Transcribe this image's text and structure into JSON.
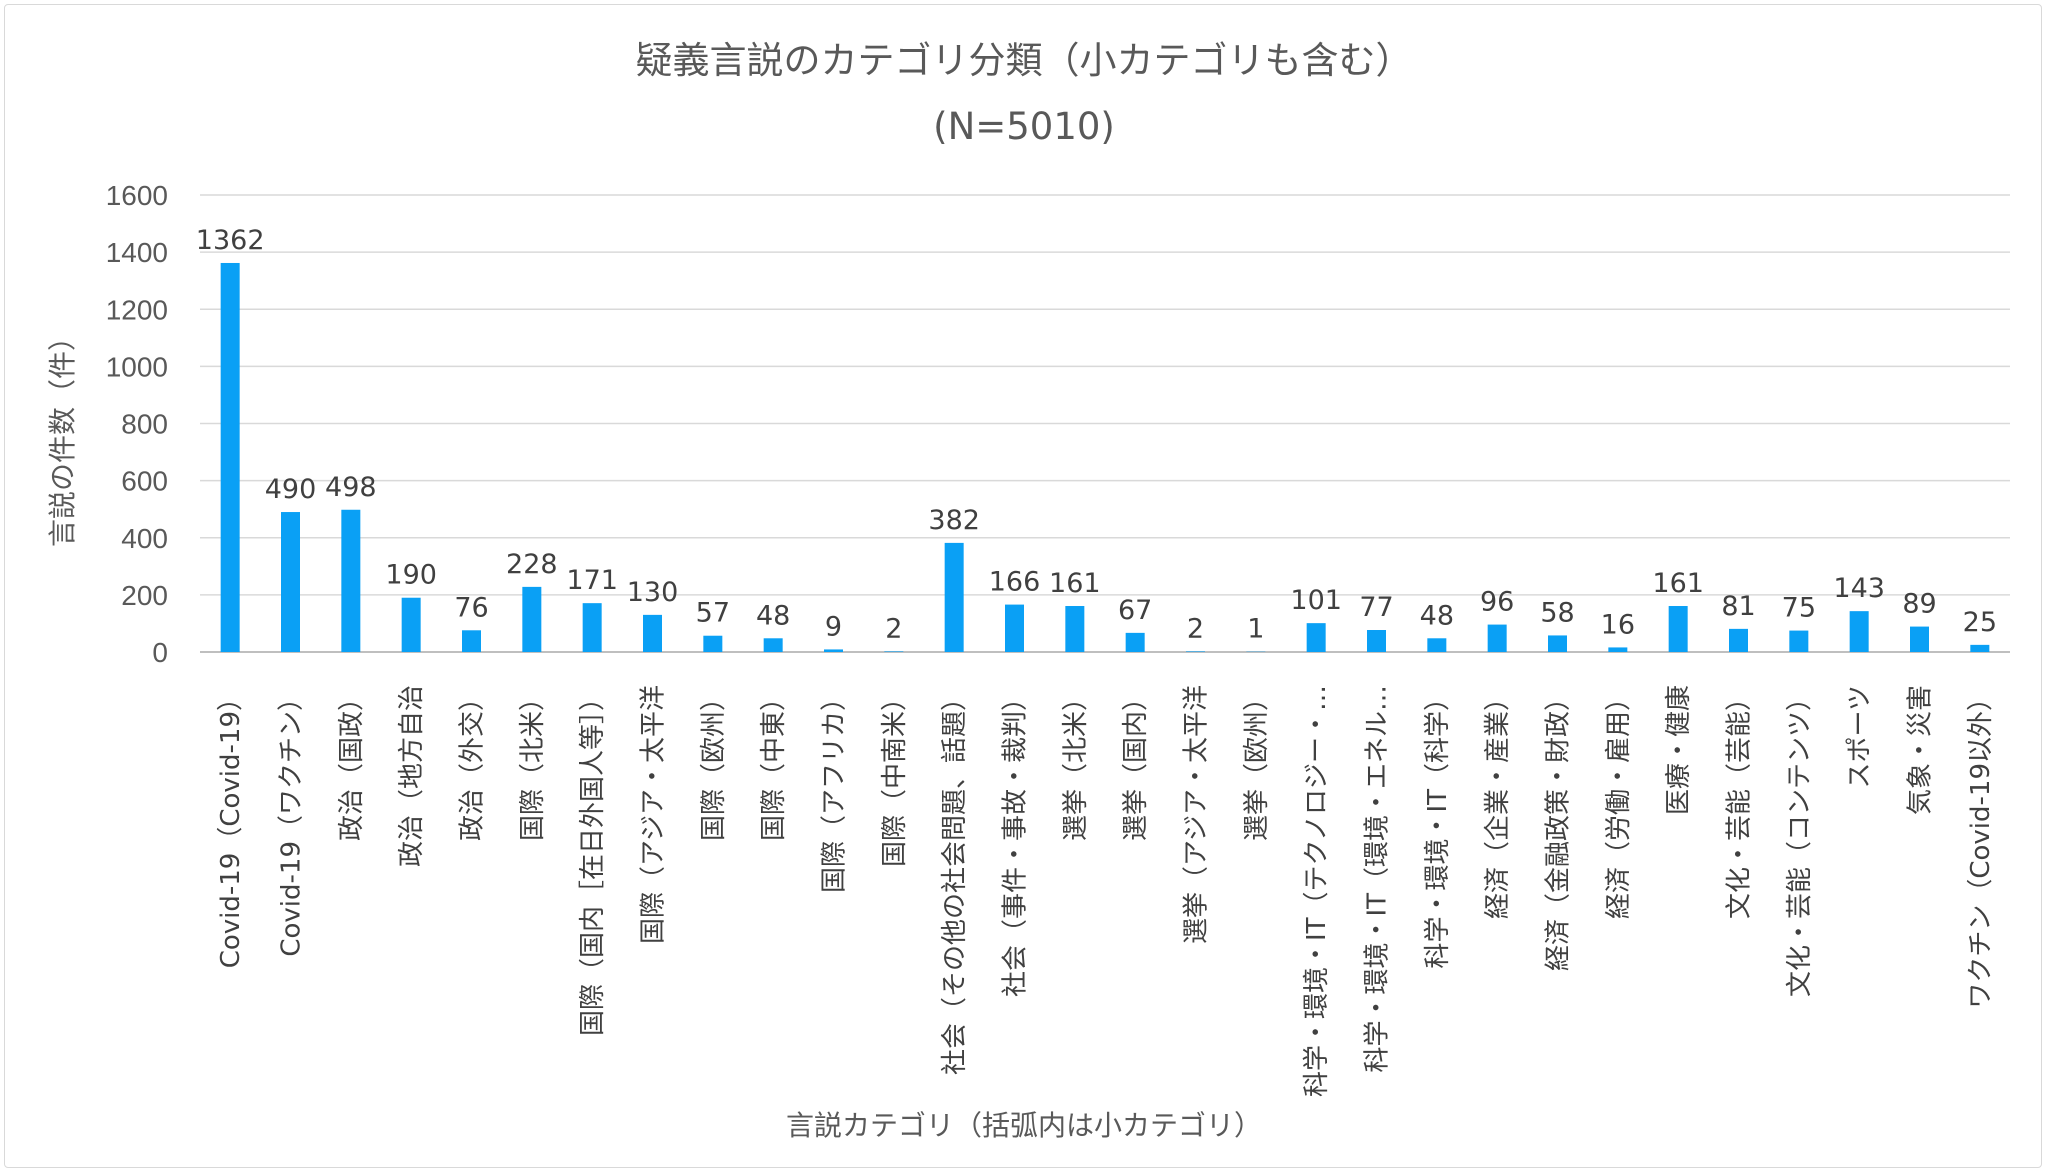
{
  "chart_data": {
    "type": "bar",
    "title": "疑義言説のカテゴリ分類（小カテゴリも含む）",
    "subtitle": "(N=5010)",
    "xlabel": "言説カテゴリ（括弧内は小カテゴリ）",
    "ylabel": "言説の件数（件）",
    "ylim": [
      0,
      1600
    ],
    "yticks": [
      0,
      200,
      400,
      600,
      800,
      1000,
      1200,
      1400,
      1600
    ],
    "grid": true,
    "bar_color": "#0aa0f5",
    "categories": [
      "Covid-19（Covid-19）",
      "Covid-19（ワクチン）",
      "政治（国政）",
      "政治（地方自治",
      "政治（外交）",
      "国際（北米）",
      "国際（国内［在日外国人等］）",
      "国際（アジア・太平洋",
      "国際（欧州）",
      "国際（中東）",
      "国際（アフリカ）",
      "国際（中南米）",
      "社会（その他の社会問題、話題）",
      "社会（事件・事故・裁判）",
      "選挙（北米）",
      "選挙（国内）",
      "選挙（アジア・太平洋",
      "選挙（欧州）",
      "科学・環境・IT（テクノロジー・…",
      "科学・環境・IT（環境・エネル…",
      "科学・環境・IT（科学）",
      "経済（企業・産業）",
      "経済（金融政策・財政）",
      "経済（労働・雇用）",
      "医療・健康",
      "文化・芸能（芸能）",
      "文化・芸能（コンテンツ）",
      "スポーツ",
      "気象・災害",
      "ワクチン（Covid-19以外）"
    ],
    "values": [
      1362,
      490,
      498,
      190,
      76,
      228,
      171,
      130,
      57,
      48,
      9,
      2,
      382,
      166,
      161,
      67,
      2,
      1,
      101,
      77,
      48,
      96,
      58,
      16,
      161,
      81,
      75,
      143,
      89,
      25
    ]
  }
}
